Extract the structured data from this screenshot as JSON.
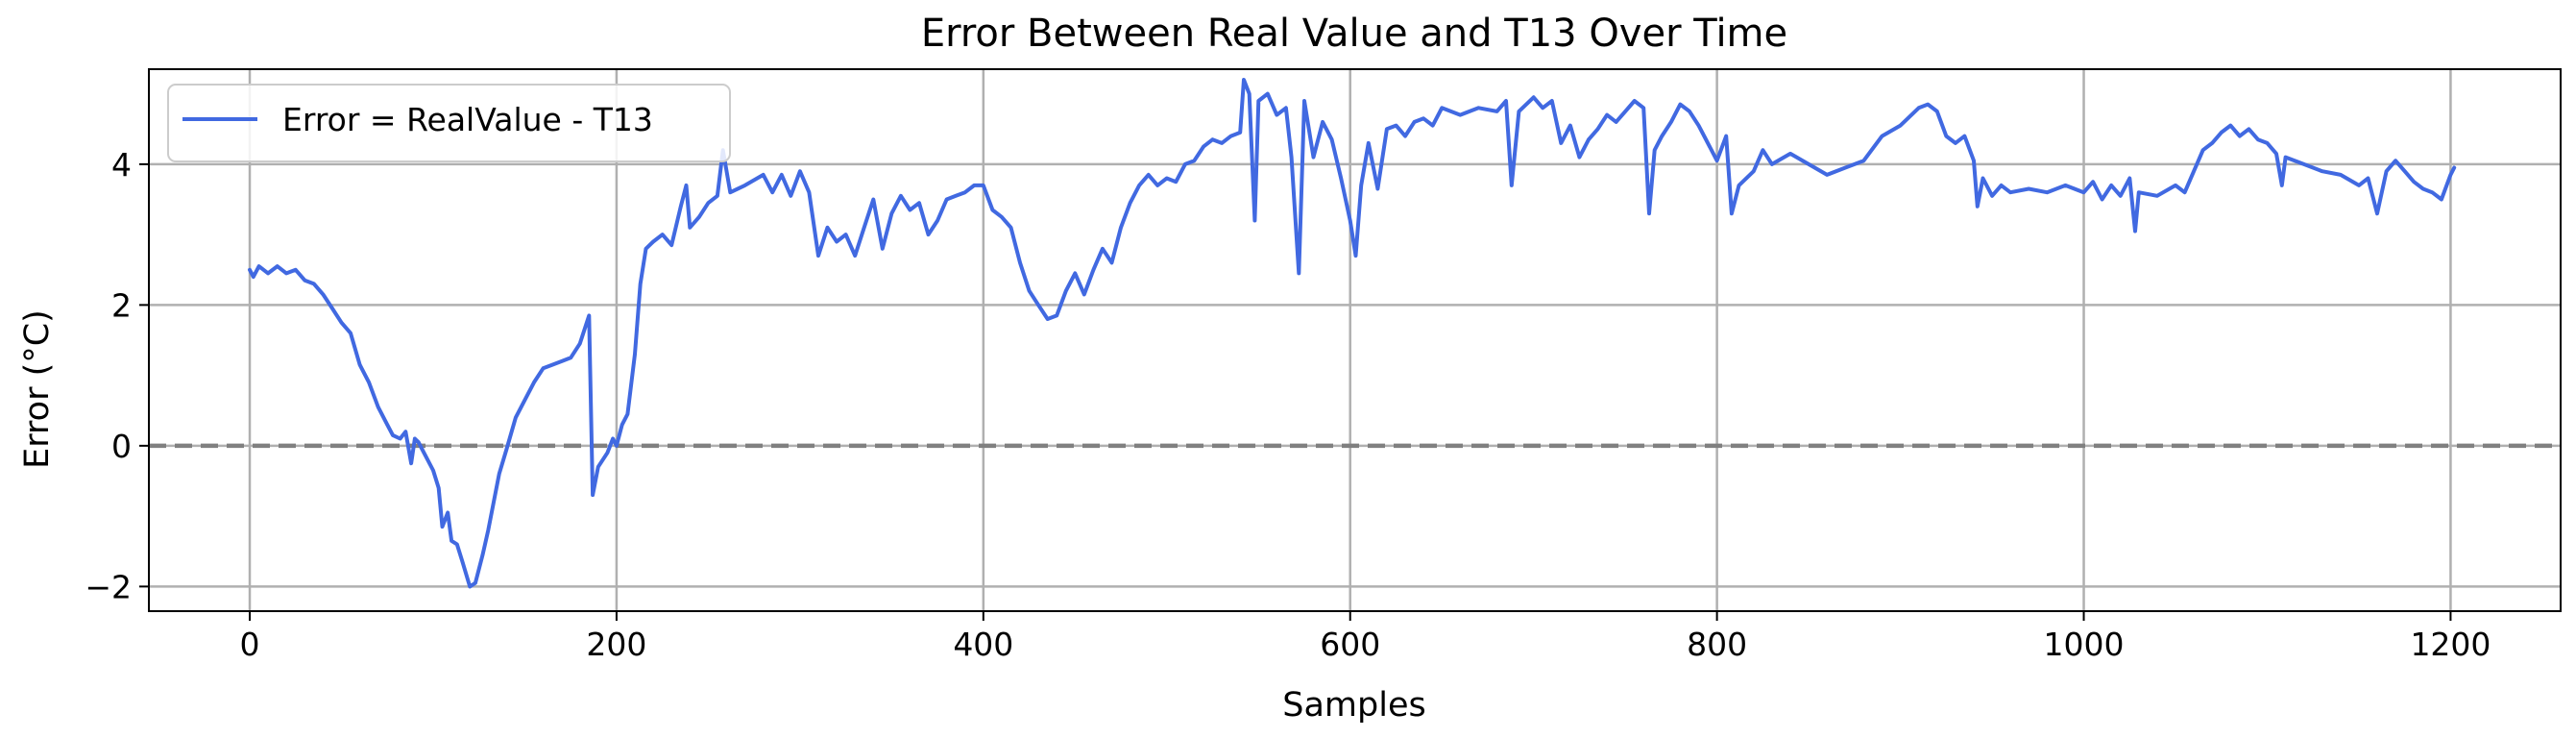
{
  "chart_data": {
    "type": "line",
    "title": "Error Between Real Value and T13 Over Time",
    "xlabel": "Samples",
    "ylabel": "Error (°C)",
    "xlim": [
      -55,
      1260
    ],
    "ylim": [
      -2.35,
      5.35
    ],
    "x_ticks": [
      0,
      200,
      400,
      600,
      800,
      1000,
      1200
    ],
    "y_ticks": [
      -2,
      0,
      2,
      4
    ],
    "grid": true,
    "legend_position": "top-left",
    "reference_line": {
      "y": 0,
      "style": "dashed",
      "color": "#808080"
    },
    "series": [
      {
        "name": "Error = RealValue - T13",
        "color": "#4169e1",
        "points": [
          [
            0,
            2.5
          ],
          [
            2,
            2.4
          ],
          [
            5,
            2.55
          ],
          [
            10,
            2.45
          ],
          [
            15,
            2.55
          ],
          [
            20,
            2.45
          ],
          [
            25,
            2.5
          ],
          [
            30,
            2.35
          ],
          [
            35,
            2.3
          ],
          [
            40,
            2.15
          ],
          [
            45,
            1.95
          ],
          [
            50,
            1.75
          ],
          [
            55,
            1.6
          ],
          [
            60,
            1.15
          ],
          [
            65,
            0.9
          ],
          [
            70,
            0.55
          ],
          [
            75,
            0.3
          ],
          [
            78,
            0.15
          ],
          [
            82,
            0.1
          ],
          [
            85,
            0.2
          ],
          [
            88,
            -0.25
          ],
          [
            90,
            0.1
          ],
          [
            92,
            0.05
          ],
          [
            95,
            -0.1
          ],
          [
            100,
            -0.35
          ],
          [
            103,
            -0.6
          ],
          [
            105,
            -1.15
          ],
          [
            108,
            -0.95
          ],
          [
            110,
            -1.35
          ],
          [
            113,
            -1.4
          ],
          [
            116,
            -1.65
          ],
          [
            120,
            -2.0
          ],
          [
            123,
            -1.95
          ],
          [
            127,
            -1.55
          ],
          [
            130,
            -1.2
          ],
          [
            133,
            -0.8
          ],
          [
            136,
            -0.4
          ],
          [
            140,
            -0.05
          ],
          [
            145,
            0.4
          ],
          [
            150,
            0.65
          ],
          [
            155,
            0.9
          ],
          [
            160,
            1.1
          ],
          [
            165,
            1.15
          ],
          [
            170,
            1.2
          ],
          [
            175,
            1.25
          ],
          [
            180,
            1.45
          ],
          [
            185,
            1.85
          ],
          [
            187,
            -0.7
          ],
          [
            190,
            -0.3
          ],
          [
            195,
            -0.1
          ],
          [
            198,
            0.1
          ],
          [
            200,
            0.0
          ],
          [
            203,
            0.3
          ],
          [
            206,
            0.45
          ],
          [
            210,
            1.3
          ],
          [
            213,
            2.3
          ],
          [
            216,
            2.8
          ],
          [
            220,
            2.9
          ],
          [
            225,
            3.0
          ],
          [
            230,
            2.85
          ],
          [
            235,
            3.4
          ],
          [
            238,
            3.7
          ],
          [
            240,
            3.1
          ],
          [
            245,
            3.25
          ],
          [
            250,
            3.45
          ],
          [
            255,
            3.55
          ],
          [
            258,
            4.2
          ],
          [
            262,
            3.6
          ],
          [
            270,
            3.7
          ],
          [
            280,
            3.85
          ],
          [
            285,
            3.6
          ],
          [
            290,
            3.85
          ],
          [
            295,
            3.55
          ],
          [
            300,
            3.9
          ],
          [
            305,
            3.6
          ],
          [
            310,
            2.7
          ],
          [
            315,
            3.1
          ],
          [
            320,
            2.9
          ],
          [
            325,
            3.0
          ],
          [
            330,
            2.7
          ],
          [
            335,
            3.1
          ],
          [
            340,
            3.5
          ],
          [
            345,
            2.8
          ],
          [
            350,
            3.3
          ],
          [
            355,
            3.55
          ],
          [
            360,
            3.35
          ],
          [
            365,
            3.45
          ],
          [
            370,
            3.0
          ],
          [
            375,
            3.2
          ],
          [
            380,
            3.5
          ],
          [
            385,
            3.55
          ],
          [
            390,
            3.6
          ],
          [
            395,
            3.7
          ],
          [
            400,
            3.7
          ],
          [
            405,
            3.35
          ],
          [
            410,
            3.25
          ],
          [
            415,
            3.1
          ],
          [
            420,
            2.6
          ],
          [
            425,
            2.2
          ],
          [
            430,
            2.0
          ],
          [
            435,
            1.8
          ],
          [
            440,
            1.85
          ],
          [
            445,
            2.2
          ],
          [
            450,
            2.45
          ],
          [
            455,
            2.15
          ],
          [
            460,
            2.5
          ],
          [
            465,
            2.8
          ],
          [
            470,
            2.6
          ],
          [
            475,
            3.1
          ],
          [
            480,
            3.45
          ],
          [
            485,
            3.7
          ],
          [
            490,
            3.85
          ],
          [
            495,
            3.7
          ],
          [
            500,
            3.8
          ],
          [
            505,
            3.75
          ],
          [
            510,
            4.0
          ],
          [
            515,
            4.05
          ],
          [
            520,
            4.25
          ],
          [
            525,
            4.35
          ],
          [
            530,
            4.3
          ],
          [
            535,
            4.4
          ],
          [
            540,
            4.45
          ],
          [
            542,
            5.2
          ],
          [
            545,
            5.0
          ],
          [
            548,
            3.2
          ],
          [
            550,
            4.9
          ],
          [
            555,
            5.0
          ],
          [
            560,
            4.7
          ],
          [
            565,
            4.8
          ],
          [
            568,
            4.1
          ],
          [
            572,
            2.45
          ],
          [
            575,
            4.9
          ],
          [
            580,
            4.1
          ],
          [
            585,
            4.6
          ],
          [
            590,
            4.35
          ],
          [
            595,
            3.8
          ],
          [
            600,
            3.2
          ],
          [
            603,
            2.7
          ],
          [
            606,
            3.7
          ],
          [
            610,
            4.3
          ],
          [
            615,
            3.65
          ],
          [
            620,
            4.5
          ],
          [
            625,
            4.55
          ],
          [
            630,
            4.4
          ],
          [
            635,
            4.6
          ],
          [
            640,
            4.65
          ],
          [
            645,
            4.55
          ],
          [
            650,
            4.8
          ],
          [
            660,
            4.7
          ],
          [
            670,
            4.8
          ],
          [
            680,
            4.75
          ],
          [
            685,
            4.9
          ],
          [
            688,
            3.7
          ],
          [
            692,
            4.75
          ],
          [
            700,
            4.95
          ],
          [
            705,
            4.8
          ],
          [
            710,
            4.9
          ],
          [
            715,
            4.3
          ],
          [
            720,
            4.55
          ],
          [
            725,
            4.1
          ],
          [
            730,
            4.35
          ],
          [
            735,
            4.5
          ],
          [
            740,
            4.7
          ],
          [
            745,
            4.6
          ],
          [
            750,
            4.75
          ],
          [
            755,
            4.9
          ],
          [
            760,
            4.8
          ],
          [
            763,
            3.3
          ],
          [
            766,
            4.2
          ],
          [
            770,
            4.4
          ],
          [
            775,
            4.6
          ],
          [
            780,
            4.85
          ],
          [
            785,
            4.75
          ],
          [
            790,
            4.55
          ],
          [
            795,
            4.3
          ],
          [
            800,
            4.05
          ],
          [
            805,
            4.4
          ],
          [
            808,
            3.3
          ],
          [
            812,
            3.7
          ],
          [
            820,
            3.9
          ],
          [
            825,
            4.2
          ],
          [
            830,
            4.0
          ],
          [
            840,
            4.15
          ],
          [
            850,
            4.0
          ],
          [
            860,
            3.85
          ],
          [
            870,
            3.95
          ],
          [
            880,
            4.05
          ],
          [
            890,
            4.4
          ],
          [
            900,
            4.55
          ],
          [
            910,
            4.8
          ],
          [
            915,
            4.85
          ],
          [
            920,
            4.75
          ],
          [
            925,
            4.4
          ],
          [
            930,
            4.3
          ],
          [
            935,
            4.4
          ],
          [
            940,
            4.05
          ],
          [
            942,
            3.4
          ],
          [
            945,
            3.8
          ],
          [
            950,
            3.55
          ],
          [
            955,
            3.7
          ],
          [
            960,
            3.6
          ],
          [
            970,
            3.65
          ],
          [
            980,
            3.6
          ],
          [
            990,
            3.7
          ],
          [
            1000,
            3.6
          ],
          [
            1005,
            3.75
          ],
          [
            1010,
            3.5
          ],
          [
            1015,
            3.7
          ],
          [
            1020,
            3.55
          ],
          [
            1025,
            3.8
          ],
          [
            1028,
            3.05
          ],
          [
            1030,
            3.6
          ],
          [
            1040,
            3.55
          ],
          [
            1050,
            3.7
          ],
          [
            1055,
            3.6
          ],
          [
            1060,
            3.9
          ],
          [
            1065,
            4.2
          ],
          [
            1070,
            4.3
          ],
          [
            1075,
            4.45
          ],
          [
            1080,
            4.55
          ],
          [
            1085,
            4.4
          ],
          [
            1090,
            4.5
          ],
          [
            1095,
            4.35
          ],
          [
            1100,
            4.3
          ],
          [
            1105,
            4.15
          ],
          [
            1108,
            3.7
          ],
          [
            1110,
            4.1
          ],
          [
            1120,
            4.0
          ],
          [
            1130,
            3.9
          ],
          [
            1140,
            3.85
          ],
          [
            1150,
            3.7
          ],
          [
            1155,
            3.8
          ],
          [
            1160,
            3.3
          ],
          [
            1165,
            3.9
          ],
          [
            1170,
            4.05
          ],
          [
            1175,
            3.9
          ],
          [
            1180,
            3.75
          ],
          [
            1185,
            3.65
          ],
          [
            1190,
            3.6
          ],
          [
            1195,
            3.5
          ],
          [
            1200,
            3.85
          ],
          [
            1202,
            3.95
          ]
        ]
      }
    ]
  }
}
